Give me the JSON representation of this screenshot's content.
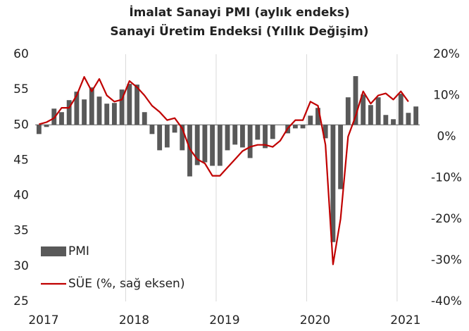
{
  "chart_data": {
    "type": "combo",
    "title": "İmalat Sanayi PMI (aylık endeks)",
    "subtitle": "Sanayi Üretim Endeksi (Yıllık Değişim)",
    "categories": [
      "2017",
      null,
      null,
      null,
      null,
      null,
      null,
      null,
      null,
      null,
      null,
      null,
      "2018",
      null,
      null,
      null,
      null,
      null,
      null,
      null,
      null,
      null,
      null,
      null,
      "2019",
      null,
      null,
      null,
      null,
      null,
      null,
      null,
      null,
      null,
      null,
      null,
      "2020",
      null,
      null,
      null,
      null,
      null,
      null,
      null,
      null,
      null,
      null,
      null,
      "2021",
      null,
      null
    ],
    "series": [
      {
        "name": "PMI",
        "type": "bar",
        "axis": "y",
        "color": "#595959",
        "values": [
          48.7,
          49.7,
          52.3,
          51.8,
          53.5,
          54.7,
          53.6,
          55.3,
          54.0,
          53.0,
          53.1,
          55.0,
          55.8,
          55.7,
          51.8,
          48.7,
          46.4,
          46.8,
          48.9,
          46.4,
          42.7,
          44.3,
          44.7,
          44.2,
          44.2,
          46.4,
          47.2,
          46.8,
          45.3,
          47.9,
          46.7,
          48.0,
          50.0,
          48.8,
          49.5,
          49.5,
          51.3,
          52.4,
          48.1,
          33.4,
          40.9,
          53.9,
          56.9,
          54.3,
          52.8,
          53.9,
          51.4,
          50.8,
          54.4,
          51.7,
          52.6
        ]
      },
      {
        "name": "SÜE (%, sağ eksen)",
        "type": "line",
        "axis": "y2",
        "color": "#c00000",
        "values": [
          3.0,
          3.5,
          4.5,
          7.0,
          7.0,
          10.0,
          14.5,
          11.0,
          14.0,
          10.0,
          8.5,
          9.0,
          13.5,
          12.0,
          10.0,
          7.5,
          6.0,
          4.0,
          4.5,
          2.0,
          -3.0,
          -5.5,
          -6.5,
          -9.5,
          -9.5,
          -7.5,
          -5.5,
          -3.5,
          -2.5,
          -2.0,
          -2.0,
          -2.5,
          -1.0,
          2.0,
          4.0,
          4.0,
          8.5,
          7.5,
          -2.0,
          -31.0,
          -20.0,
          0.0,
          5.0,
          11.0,
          8.0,
          10.0,
          10.5,
          9.0,
          11.0,
          8.5,
          null
        ]
      }
    ],
    "ylim": [
      25,
      60
    ],
    "yticks": [
      25,
      30,
      35,
      40,
      45,
      50,
      55,
      60
    ],
    "y2lim": [
      -40,
      20
    ],
    "y2ticks": [
      {
        "value": -40,
        "label": "-40%"
      },
      {
        "value": -30,
        "label": "-30%"
      },
      {
        "value": -20,
        "label": "-20%"
      },
      {
        "value": -10,
        "label": "-10%"
      },
      {
        "value": 0,
        "label": "0%"
      },
      {
        "value": 10,
        "label": "10%"
      },
      {
        "value": 20,
        "label": "20%"
      }
    ],
    "bar_base": 50,
    "grid": "x",
    "legend": "lower left"
  }
}
